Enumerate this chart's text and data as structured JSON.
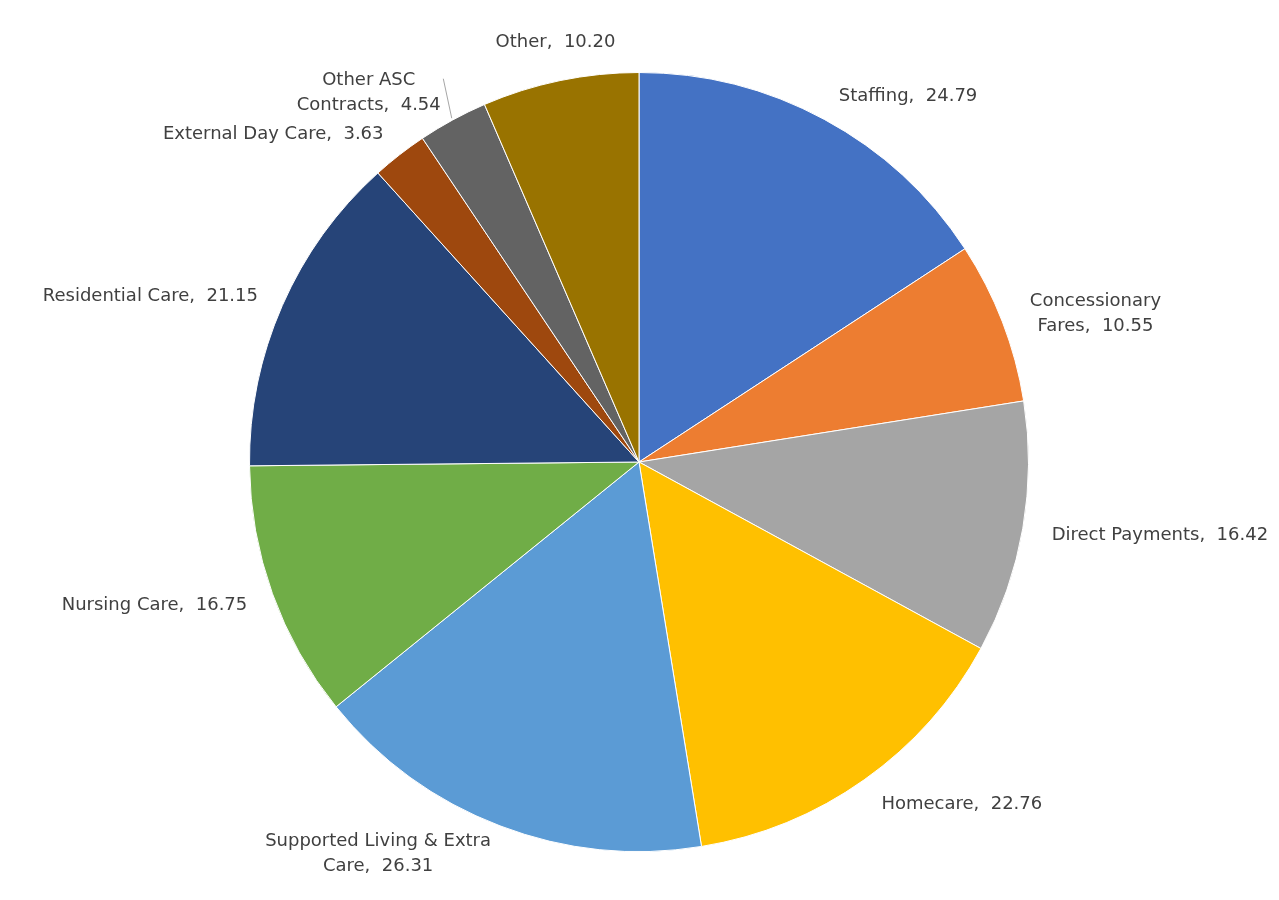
{
  "chart_data": {
    "type": "pie",
    "categories": [
      "Staffing",
      "Concessionary Fares",
      "Direct Payments",
      "Homecare",
      "Supported Living & Extra Care",
      "Nursing Care",
      "Residential Care",
      "External Day Care",
      "Other ASC Contracts",
      "Other"
    ],
    "values": [
      24.79,
      10.55,
      16.42,
      22.76,
      26.31,
      16.75,
      21.15,
      3.63,
      4.54,
      10.2
    ],
    "value_labels": [
      "24.79",
      "10.55",
      "16.42",
      "22.76",
      "26.31",
      "16.75",
      "21.15",
      "3.63",
      "4.54",
      "10.20"
    ],
    "colors": [
      "#4472c4",
      "#ed7d31",
      "#a5a5a5",
      "#ffc000",
      "#5b9bd5",
      "#70ad47",
      "#264478",
      "#9e480e",
      "#636363",
      "#997300"
    ],
    "legend": false
  }
}
